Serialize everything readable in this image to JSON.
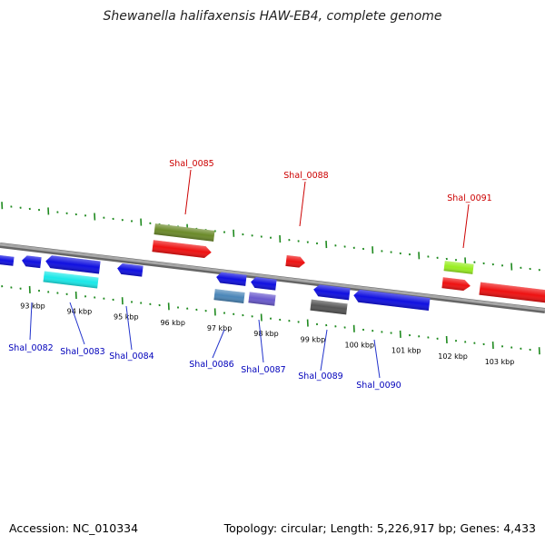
{
  "title": "Shewanella halifaxensis HAW-EB4, complete genome",
  "footer": {
    "accession": "Accession: NC_010334",
    "summary": "Topology: circular; Length: 5,226,917 bp; Genes: 4,433"
  },
  "scale": {
    "unit": "kbp",
    "tick_labels": [
      "93 kbp",
      "94 kbp",
      "95 kbp",
      "96 kbp",
      "97 kbp",
      "98 kbp",
      "99 kbp",
      "100 kbp",
      "101 kbp",
      "102 kbp",
      "103 kbp"
    ]
  },
  "colors": {
    "backbone": "#8c8c8c",
    "tick": "#1f8a1f",
    "label_forward": "#cc0000",
    "label_reverse": "#0000bb",
    "leader_forward": "#cc0000",
    "leader_reverse": "#2233cc"
  },
  "labels": {
    "forward": [
      "Shal_0085",
      "Shal_0088",
      "Shal_0091"
    ],
    "reverse": [
      "Shal_0082",
      "Shal_0083",
      "Shal_0084",
      "Shal_0086",
      "Shal_0087",
      "Shal_0089",
      "Shal_0090"
    ]
  },
  "feature_colors": {
    "blue": "#1010e0",
    "cyan": "#1ae8e8",
    "olive": "#6b8a2a",
    "red": "#ee1111",
    "steel": "#4a86b8",
    "slate": "#6a5acd",
    "gray": "#555555",
    "lime": "#99ee22"
  }
}
